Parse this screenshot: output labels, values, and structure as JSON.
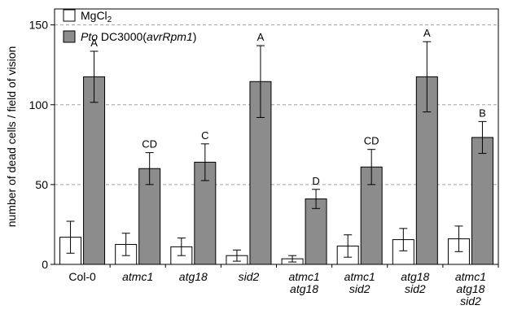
{
  "chart_data": {
    "type": "bar",
    "ylabel": "number of dead cells / field of vision",
    "ylim": [
      0,
      160
    ],
    "yticks": [
      0,
      50,
      100,
      150
    ],
    "grid": "horizontal dashed",
    "legend_placement": "top-left",
    "categories": [
      [
        "Col-0"
      ],
      [
        "atmc1"
      ],
      [
        "atg18"
      ],
      [
        "sid2"
      ],
      [
        "atmc1",
        "atg18"
      ],
      [
        "atmc1",
        "sid2"
      ],
      [
        "atg18",
        "sid2"
      ],
      [
        "atmc1",
        "atg18",
        "sid2"
      ]
    ],
    "category_italic": [
      false,
      true,
      true,
      true,
      true,
      true,
      true,
      true
    ],
    "series": [
      {
        "name": "MgCl2",
        "legend_main": "MgCl",
        "legend_sub": "2",
        "color": "#ffffff",
        "values": [
          17,
          12.5,
          11,
          5.5,
          3.5,
          11.5,
          15.5,
          16
        ],
        "errors": [
          10,
          7,
          5.5,
          3.5,
          2,
          7,
          7,
          8
        ]
      },
      {
        "name": "Pto DC3000(avrRpm1)",
        "legend_italic": "Pto",
        "legend_rest": " DC3000(",
        "legend_italic2": "avrRpm1",
        "legend_end": ")",
        "color": "#8c8c8c",
        "values": [
          117.5,
          60,
          64,
          114.5,
          41,
          61,
          117.5,
          79.5
        ],
        "errors": [
          16,
          10,
          11.5,
          22.5,
          6,
          11,
          22,
          10
        ],
        "significance": [
          "A",
          "CD",
          "C",
          "A",
          "D",
          "CD",
          "A",
          "B"
        ]
      }
    ]
  }
}
